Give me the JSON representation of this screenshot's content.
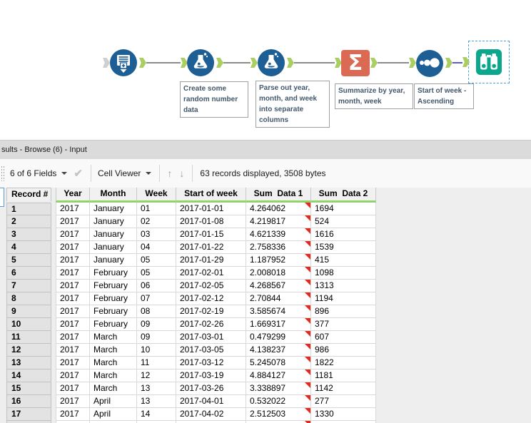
{
  "workflow": {
    "tools": [
      {
        "id": "text-input",
        "tooltip": "Text Input"
      },
      {
        "id": "formula-create",
        "tooltip": "Formula"
      },
      {
        "id": "formula-parse",
        "tooltip": "Formula"
      },
      {
        "id": "summarize",
        "tooltip": "Summarize",
        "glyph": "Σ"
      },
      {
        "id": "sort",
        "tooltip": "Sort"
      },
      {
        "id": "browse",
        "tooltip": "Browse",
        "selected": true
      }
    ],
    "captions": {
      "formula1": "Create some random number data",
      "formula2": "Parse out year, month, and week into separate columns",
      "summarize": "Summarize by year, month, week",
      "sort": "Start of week - Ascending"
    },
    "summarize_glyph": "Σ"
  },
  "results_panel": {
    "title": "sults - Browse (6) - Input",
    "toolbar": {
      "fields_selector": "6 of 6 Fields",
      "apply_check_icon": "✔",
      "cell_viewer": "Cell Viewer",
      "up_arrow_icon": "↑",
      "down_arrow_icon": "↓",
      "status": "63 records displayed, 3508 bytes"
    }
  },
  "table": {
    "columns": [
      "Record #",
      "Year",
      "Month",
      "Week",
      "Start of week",
      "Sum  Data 1",
      "Sum  Data 2"
    ],
    "rows": [
      [
        "1",
        "2017",
        "January",
        "01",
        "2017-01-01",
        "4.264062",
        "1694"
      ],
      [
        "2",
        "2017",
        "January",
        "02",
        "2017-01-08",
        "4.219817",
        "524"
      ],
      [
        "3",
        "2017",
        "January",
        "03",
        "2017-01-15",
        "4.621339",
        "1616"
      ],
      [
        "4",
        "2017",
        "January",
        "04",
        "2017-01-22",
        "2.758336",
        "1539"
      ],
      [
        "5",
        "2017",
        "January",
        "05",
        "2017-01-29",
        "1.187952",
        "415"
      ],
      [
        "6",
        "2017",
        "February",
        "05",
        "2017-02-01",
        "2.008018",
        "1098"
      ],
      [
        "7",
        "2017",
        "February",
        "06",
        "2017-02-05",
        "4.268567",
        "1313"
      ],
      [
        "8",
        "2017",
        "February",
        "07",
        "2017-02-12",
        "2.70844",
        "1194"
      ],
      [
        "9",
        "2017",
        "February",
        "08",
        "2017-02-19",
        "3.585674",
        "896"
      ],
      [
        "10",
        "2017",
        "February",
        "09",
        "2017-02-26",
        "1.669317",
        "377"
      ],
      [
        "11",
        "2017",
        "March",
        "09",
        "2017-03-01",
        "0.479299",
        "607"
      ],
      [
        "12",
        "2017",
        "March",
        "10",
        "2017-03-05",
        "4.138237",
        "986"
      ],
      [
        "13",
        "2017",
        "March",
        "11",
        "2017-03-12",
        "5.245078",
        "1822"
      ],
      [
        "14",
        "2017",
        "March",
        "12",
        "2017-03-19",
        "4.884127",
        "1181"
      ],
      [
        "15",
        "2017",
        "March",
        "13",
        "2017-03-26",
        "3.338897",
        "1142"
      ],
      [
        "16",
        "2017",
        "April",
        "13",
        "2017-04-01",
        "0.532022",
        "277"
      ],
      [
        "17",
        "2017",
        "April",
        "14",
        "2017-04-02",
        "2.512503",
        "1330"
      ]
    ],
    "flag_column_index": 5
  },
  "colors": {
    "tool_blue": "#1d5e95",
    "summarize_orange": "#db6a55",
    "browse_teal": "#0aa78d",
    "anchor_green": "#aace62",
    "header_green": "#90d36b",
    "selection_blue": "#45a1e5",
    "selected_wire_blue": "#5b5bd7",
    "cell_flag_red": "#e22b1f"
  }
}
